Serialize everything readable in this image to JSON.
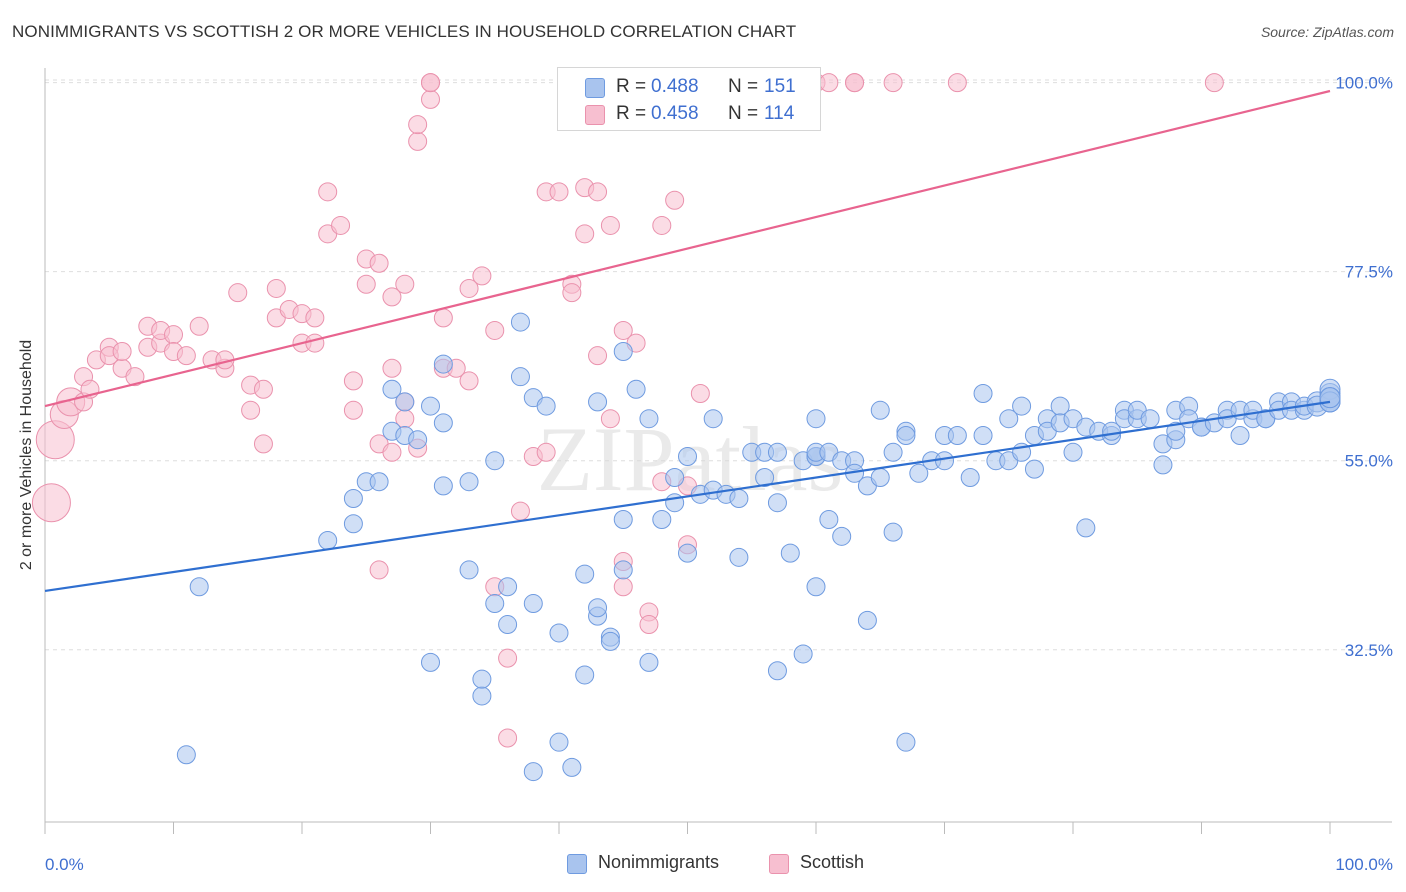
{
  "header": {
    "title": "NONIMMIGRANTS VS SCOTTISH 2 OR MORE VEHICLES IN HOUSEHOLD CORRELATION CHART",
    "source": "Source: ZipAtlas.com"
  },
  "watermark": "ZIPatlas",
  "legend_top": [
    {
      "r_label": "R =",
      "r_value": "0.488",
      "n_label": "N =",
      "n_value": "151",
      "color": "#a9c4ee"
    },
    {
      "r_label": "R =",
      "r_value": "0.458",
      "n_label": "N =",
      "n_value": "114",
      "color": "#f7bfd0"
    }
  ],
  "legend_bottom": [
    {
      "label": "Nonimmigrants",
      "color": "#a9c4ee"
    },
    {
      "label": "Scottish",
      "color": "#f7bfd0"
    }
  ],
  "colors": {
    "blue_fill": "#a9c4ee",
    "blue_stroke": "#6f9be0",
    "blue_line": "#2f6fd0",
    "pink_fill": "#f7bfd0",
    "pink_stroke": "#ea92ad",
    "pink_line": "#e8648f",
    "tick_label": "#3f6fd0",
    "grid": "#dedede"
  },
  "chart_data": {
    "type": "scatter",
    "title": "NONIMMIGRANTS VS SCOTTISH 2 OR MORE VEHICLES IN HOUSEHOLD CORRELATION CHART",
    "xlabel": "",
    "ylabel": "2 or more Vehicles in Household",
    "xlim": [
      0,
      100
    ],
    "ylim": [
      12,
      101.5
    ],
    "x_tick_labels": [
      "0.0%",
      "100.0%"
    ],
    "y_ticks": [
      32.5,
      55.0,
      77.5,
      100.0
    ],
    "y_tick_labels": [
      "32.5%",
      "55.0%",
      "77.5%",
      "100.0%"
    ],
    "grid": "horizontal dashed",
    "legend_placement": "top-center",
    "series": [
      {
        "name": "Nonimmigrants",
        "trend": [
          [
            0,
            39.5
          ],
          [
            100,
            62.0
          ]
        ],
        "points": [
          [
            12,
            40
          ],
          [
            11,
            20
          ],
          [
            22,
            45.5
          ],
          [
            24,
            50.5
          ],
          [
            24,
            47.5
          ],
          [
            25,
            52.5
          ],
          [
            26,
            52.5
          ],
          [
            27,
            63.5
          ],
          [
            27,
            58.5
          ],
          [
            28,
            58
          ],
          [
            28,
            62
          ],
          [
            29,
            57.5
          ],
          [
            30,
            61.5
          ],
          [
            30,
            31
          ],
          [
            31,
            66.5
          ],
          [
            31,
            59.5
          ],
          [
            31,
            52
          ],
          [
            33,
            42
          ],
          [
            33,
            52.5
          ],
          [
            35,
            38
          ],
          [
            34,
            27
          ],
          [
            34,
            29
          ],
          [
            35,
            55
          ],
          [
            36,
            40
          ],
          [
            36,
            35.5
          ],
          [
            37,
            71.5
          ],
          [
            37,
            65
          ],
          [
            38,
            38
          ],
          [
            38,
            18
          ],
          [
            38,
            62.5
          ],
          [
            39,
            61.5
          ],
          [
            40,
            34.5
          ],
          [
            40,
            21.5
          ],
          [
            41,
            18.5
          ],
          [
            42,
            41.5
          ],
          [
            42,
            29.5
          ],
          [
            43,
            36.5
          ],
          [
            43,
            37.5
          ],
          [
            44,
            34
          ],
          [
            44,
            33.5
          ],
          [
            43,
            62
          ],
          [
            45,
            42
          ],
          [
            45,
            68
          ],
          [
            45,
            48
          ],
          [
            46,
            63.5
          ],
          [
            47,
            60
          ],
          [
            47,
            31
          ],
          [
            48,
            48
          ],
          [
            49,
            50
          ],
          [
            49,
            53
          ],
          [
            50,
            44
          ],
          [
            50,
            55.5
          ],
          [
            51,
            51
          ],
          [
            52,
            60
          ],
          [
            52,
            51.5
          ],
          [
            53,
            51
          ],
          [
            54,
            43.5
          ],
          [
            54,
            50.5
          ],
          [
            55,
            56
          ],
          [
            56,
            53
          ],
          [
            56,
            56
          ],
          [
            57,
            56
          ],
          [
            57,
            50
          ],
          [
            58,
            44
          ],
          [
            59,
            55
          ],
          [
            60,
            55.5
          ],
          [
            60,
            55.5
          ],
          [
            60,
            56
          ],
          [
            60,
            60
          ],
          [
            61,
            56
          ],
          [
            61,
            48
          ],
          [
            62,
            46
          ],
          [
            62,
            55
          ],
          [
            63,
            55
          ],
          [
            63,
            53.5
          ],
          [
            64,
            52
          ],
          [
            65,
            53
          ],
          [
            65,
            61
          ],
          [
            66,
            46.5
          ],
          [
            66,
            56
          ],
          [
            67,
            58.5
          ],
          [
            67,
            58
          ],
          [
            68,
            53.5
          ],
          [
            69,
            55
          ],
          [
            70,
            58
          ],
          [
            70,
            55
          ],
          [
            71,
            58
          ],
          [
            72,
            53
          ],
          [
            73,
            63
          ],
          [
            73,
            58
          ],
          [
            74,
            55
          ],
          [
            75,
            55
          ],
          [
            75,
            60
          ],
          [
            76,
            61.5
          ],
          [
            76,
            56
          ],
          [
            77,
            54
          ],
          [
            77,
            58
          ],
          [
            78,
            60
          ],
          [
            78,
            58.5
          ],
          [
            79,
            61.5
          ],
          [
            79,
            59.5
          ],
          [
            80,
            60
          ],
          [
            80,
            56
          ],
          [
            81,
            47
          ],
          [
            81,
            59
          ],
          [
            82,
            58.5
          ],
          [
            83,
            58
          ],
          [
            83,
            58.5
          ],
          [
            84,
            61
          ],
          [
            84,
            60
          ],
          [
            85,
            60
          ],
          [
            85,
            61
          ],
          [
            86,
            60
          ],
          [
            87,
            54.5
          ],
          [
            87,
            57
          ],
          [
            88,
            57.5
          ],
          [
            88,
            61
          ],
          [
            88,
            58.5
          ],
          [
            89,
            61.5
          ],
          [
            89,
            60
          ],
          [
            90,
            59
          ],
          [
            90,
            59
          ],
          [
            91,
            59.5
          ],
          [
            92,
            61
          ],
          [
            92,
            60
          ],
          [
            93,
            58
          ],
          [
            93,
            61
          ],
          [
            94,
            60
          ],
          [
            94,
            61
          ],
          [
            95,
            60
          ],
          [
            95,
            60
          ],
          [
            96,
            62
          ],
          [
            96,
            61
          ],
          [
            97,
            62
          ],
          [
            97,
            61
          ],
          [
            98,
            61
          ],
          [
            98,
            61.5
          ],
          [
            99,
            62
          ],
          [
            99,
            61.5
          ],
          [
            100,
            63
          ],
          [
            100,
            62.5
          ],
          [
            101,
            62
          ],
          [
            101,
            62
          ],
          [
            102,
            63.5
          ],
          [
            102,
            62.5
          ],
          [
            103,
            62
          ],
          [
            103,
            62.5
          ],
          [
            57,
            30
          ],
          [
            59,
            32
          ],
          [
            60,
            40
          ],
          [
            67,
            21.5
          ],
          [
            64,
            36
          ]
        ]
      },
      {
        "name": "Scottish",
        "trend": [
          [
            0,
            61.5
          ],
          [
            100,
            99.0
          ]
        ],
        "points": [
          [
            0.5,
            50
          ],
          [
            0.8,
            57.5
          ],
          [
            1.5,
            60.5
          ],
          [
            2,
            62
          ],
          [
            3,
            65
          ],
          [
            3,
            62
          ],
          [
            3.5,
            63.5
          ],
          [
            4,
            67
          ],
          [
            5,
            68.5
          ],
          [
            5,
            67.5
          ],
          [
            6,
            66
          ],
          [
            6,
            68
          ],
          [
            7,
            65
          ],
          [
            8,
            71
          ],
          [
            8,
            68.5
          ],
          [
            9,
            69
          ],
          [
            9,
            70.5
          ],
          [
            10,
            70
          ],
          [
            10,
            68
          ],
          [
            11,
            67.5
          ],
          [
            12,
            71
          ],
          [
            13,
            67
          ],
          [
            14,
            66
          ],
          [
            14,
            67
          ],
          [
            15,
            75
          ],
          [
            16,
            61
          ],
          [
            16,
            64
          ],
          [
            17,
            57
          ],
          [
            17,
            63.5
          ],
          [
            18,
            72
          ],
          [
            18,
            75.5
          ],
          [
            19,
            73
          ],
          [
            20,
            69
          ],
          [
            20,
            72.5
          ],
          [
            21,
            69
          ],
          [
            21,
            72
          ],
          [
            22,
            82
          ],
          [
            22,
            87
          ],
          [
            23,
            83
          ],
          [
            24,
            64.5
          ],
          [
            24,
            61
          ],
          [
            25,
            76
          ],
          [
            25,
            79
          ],
          [
            26,
            57
          ],
          [
            26,
            42
          ],
          [
            26,
            78.5
          ],
          [
            27,
            56
          ],
          [
            27,
            66
          ],
          [
            27,
            74.5
          ],
          [
            28,
            62
          ],
          [
            28,
            60
          ],
          [
            28,
            76
          ],
          [
            29,
            56.5
          ],
          [
            29,
            93
          ],
          [
            29,
            95
          ],
          [
            30,
            98
          ],
          [
            30,
            100
          ],
          [
            30,
            100
          ],
          [
            31,
            72
          ],
          [
            31,
            66
          ],
          [
            32,
            66
          ],
          [
            33,
            75.5
          ],
          [
            33,
            64.5
          ],
          [
            34,
            77
          ],
          [
            35,
            70.5
          ],
          [
            35,
            40
          ],
          [
            36,
            31.5
          ],
          [
            36,
            22
          ],
          [
            37,
            49
          ],
          [
            38,
            55.5
          ],
          [
            39,
            56
          ],
          [
            39,
            87
          ],
          [
            40,
            87
          ],
          [
            41,
            76
          ],
          [
            41,
            75
          ],
          [
            42,
            87.5
          ],
          [
            42,
            82
          ],
          [
            43,
            67.5
          ],
          [
            43,
            87
          ],
          [
            44,
            60
          ],
          [
            44,
            83
          ],
          [
            45,
            70.5
          ],
          [
            45,
            43
          ],
          [
            45,
            40
          ],
          [
            46,
            69
          ],
          [
            47,
            37
          ],
          [
            47,
            35.5
          ],
          [
            48,
            83
          ],
          [
            48,
            52.5
          ],
          [
            49,
            86
          ],
          [
            50,
            52
          ],
          [
            50,
            45
          ],
          [
            51,
            63
          ],
          [
            52,
            100
          ],
          [
            52,
            100
          ],
          [
            57,
            100
          ],
          [
            60,
            100
          ],
          [
            61,
            100
          ],
          [
            63,
            100
          ],
          [
            63,
            100
          ],
          [
            66,
            100
          ],
          [
            71,
            100
          ],
          [
            91,
            100
          ]
        ]
      }
    ]
  }
}
